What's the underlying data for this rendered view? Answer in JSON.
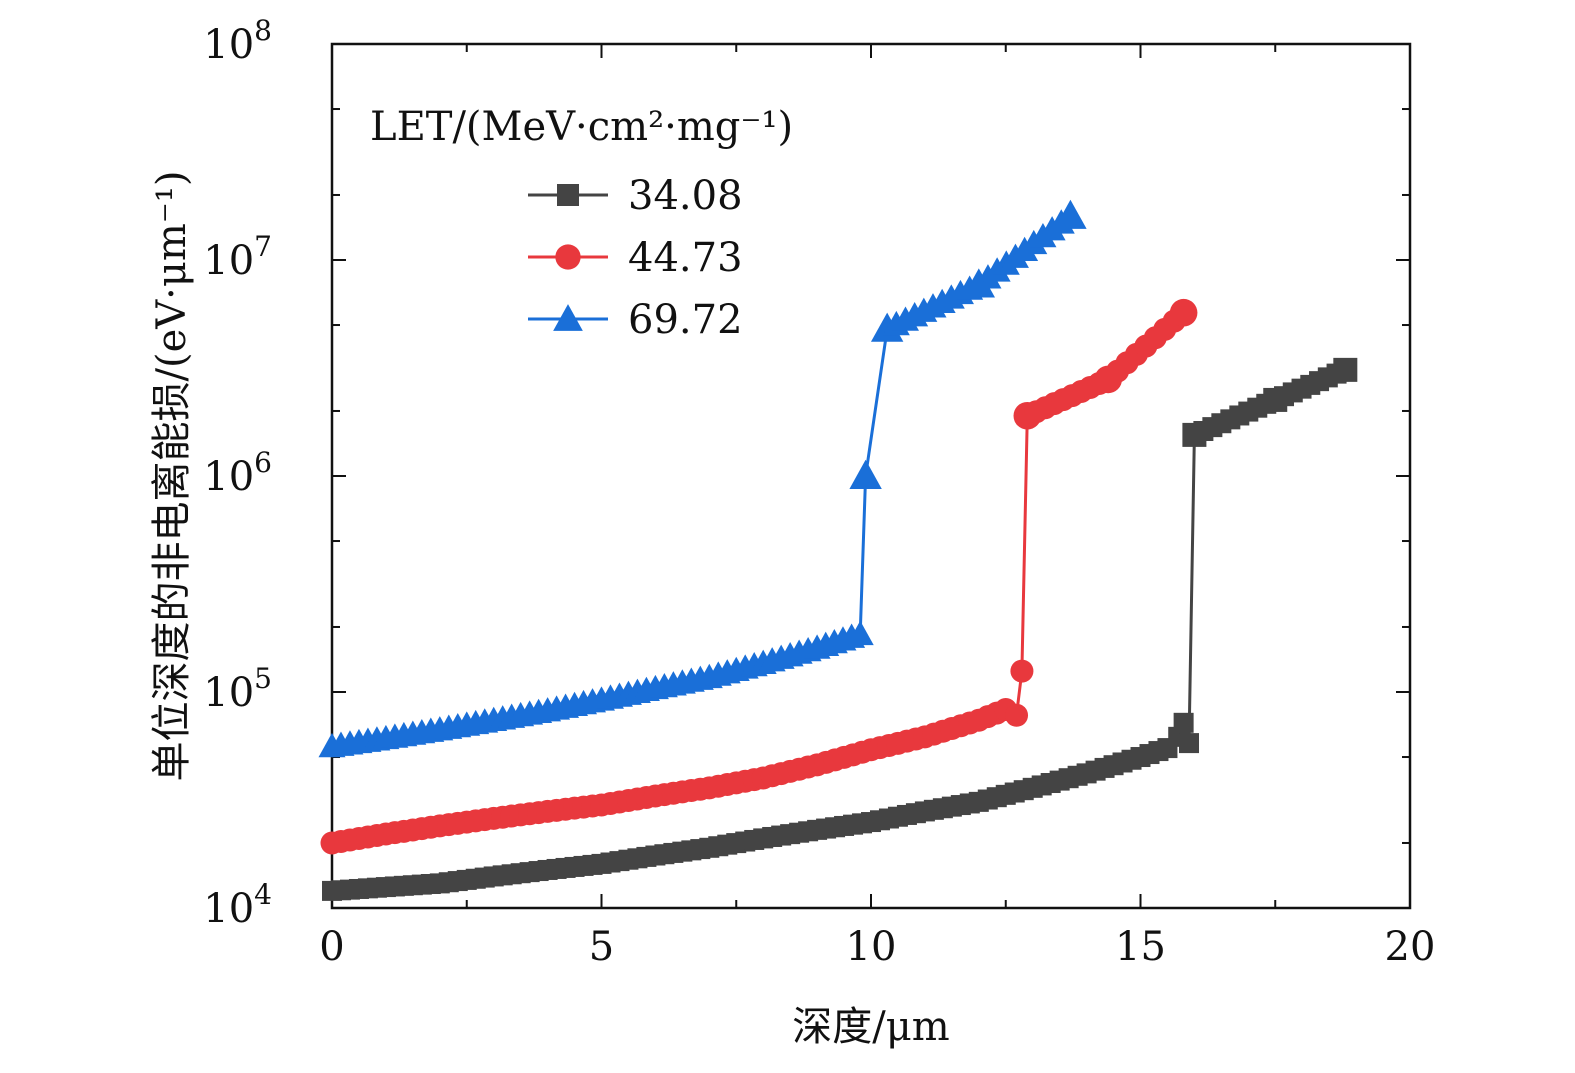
{
  "chart_data": {
    "type": "line",
    "xlabel": "深度/μm",
    "ylabel": "单位深度的非电离能损/(eV·μm⁻¹)",
    "xlim": [
      0,
      20
    ],
    "ylim": [
      10000,
      100000000
    ],
    "yscale": "log",
    "xticks": [
      "0",
      "5",
      "10",
      "15",
      "20"
    ],
    "ytick_base": "10",
    "ytick_exponents": [
      "4",
      "5",
      "6",
      "7",
      "8"
    ],
    "grid": false,
    "legend": {
      "title": "LET/(MeV·cm²·mg⁻¹)",
      "placement": "top-left"
    },
    "series": [
      {
        "name": "34.08",
        "color": "#444444",
        "marker": "square",
        "points": [
          [
            0,
            12000
          ],
          [
            1,
            12500
          ],
          [
            2,
            13000
          ],
          [
            3,
            14000
          ],
          [
            4,
            15000
          ],
          [
            5,
            16000
          ],
          [
            6,
            17500
          ],
          [
            7,
            19000
          ],
          [
            8,
            21000
          ],
          [
            9,
            23000
          ],
          [
            10,
            25000
          ],
          [
            11,
            28000
          ],
          [
            12,
            31000
          ],
          [
            13,
            36000
          ],
          [
            14,
            42000
          ],
          [
            15,
            50000
          ],
          [
            15.5,
            55000
          ],
          [
            15.7,
            62000
          ],
          [
            15.8,
            72000
          ],
          [
            15.9,
            58000
          ],
          [
            16.0,
            1550000
          ],
          [
            17.5,
            2250000
          ],
          [
            18.8,
            3100000
          ]
        ]
      },
      {
        "name": "44.73",
        "color": "#e8383d",
        "marker": "circle",
        "points": [
          [
            0,
            20000
          ],
          [
            1,
            22000
          ],
          [
            2,
            24000
          ],
          [
            3,
            26000
          ],
          [
            4,
            28000
          ],
          [
            5,
            30000
          ],
          [
            6,
            33000
          ],
          [
            7,
            36000
          ],
          [
            8,
            40000
          ],
          [
            9,
            46000
          ],
          [
            10,
            54000
          ],
          [
            11,
            62000
          ],
          [
            12,
            74000
          ],
          [
            12.5,
            83000
          ],
          [
            12.7,
            78000
          ],
          [
            12.8,
            125000
          ],
          [
            12.9,
            1900000
          ],
          [
            14.4,
            2800000
          ],
          [
            15.8,
            5700000
          ]
        ]
      },
      {
        "name": "69.72",
        "color": "#1a6fd8",
        "marker": "triangle",
        "points": [
          [
            0,
            56000
          ],
          [
            1,
            61000
          ],
          [
            2,
            67000
          ],
          [
            3,
            74000
          ],
          [
            4,
            82000
          ],
          [
            5,
            92000
          ],
          [
            6,
            104000
          ],
          [
            7,
            117000
          ],
          [
            8,
            136000
          ],
          [
            9,
            160000
          ],
          [
            9.8,
            185000
          ],
          [
            9.9,
            1000000
          ],
          [
            10.3,
            4800000
          ],
          [
            12.0,
            7700000
          ],
          [
            13.7,
            16000000
          ]
        ]
      }
    ]
  }
}
